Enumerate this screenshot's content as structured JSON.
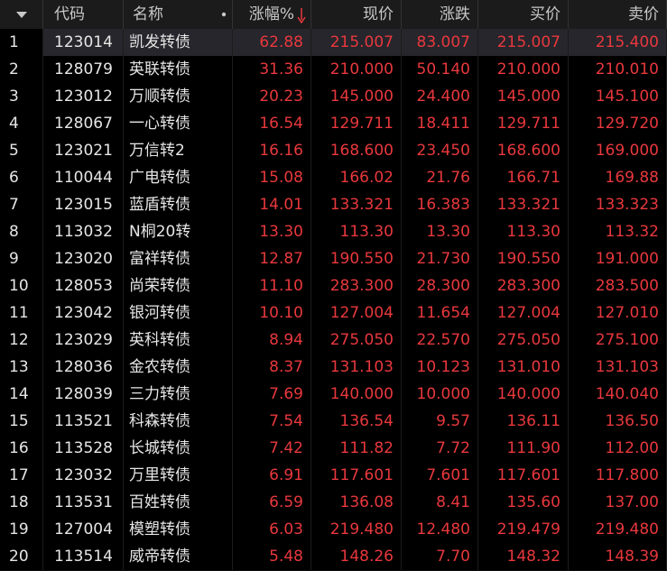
{
  "table": {
    "headers": [
      "代码",
      "名称",
      "涨幅%",
      "现价",
      "涨跌",
      "买价",
      "卖价"
    ],
    "rows": [
      [
        "1",
        "123014",
        "凯发转债",
        "62.88",
        "215.007",
        "83.007",
        "215.007",
        "215.400"
      ],
      [
        "2",
        "128079",
        "英联转债",
        "31.36",
        "210.000",
        "50.140",
        "210.000",
        "210.010"
      ],
      [
        "3",
        "123012",
        "万顺转债",
        "20.23",
        "145.000",
        "24.400",
        "145.000",
        "145.100"
      ],
      [
        "4",
        "128067",
        "一心转债",
        "16.54",
        "129.711",
        "18.411",
        "129.711",
        "129.720"
      ],
      [
        "5",
        "123021",
        "万信转2",
        "16.16",
        "168.600",
        "23.450",
        "168.600",
        "169.000"
      ],
      [
        "6",
        "110044",
        "广电转债",
        "15.08",
        "166.02",
        "21.76",
        "166.71",
        "169.88"
      ],
      [
        "7",
        "123015",
        "蓝盾转债",
        "14.01",
        "133.321",
        "16.383",
        "133.321",
        "133.323"
      ],
      [
        "8",
        "113032",
        "N桐20转",
        "13.30",
        "113.30",
        "13.30",
        "113.30",
        "113.32"
      ],
      [
        "9",
        "123020",
        "富祥转债",
        "12.87",
        "190.550",
        "21.730",
        "190.550",
        "191.000"
      ],
      [
        "10",
        "128053",
        "尚荣转债",
        "11.10",
        "283.300",
        "28.300",
        "283.300",
        "283.500"
      ],
      [
        "11",
        "123042",
        "银河转债",
        "10.10",
        "127.004",
        "11.654",
        "127.004",
        "127.010"
      ],
      [
        "12",
        "123029",
        "英科转债",
        "8.94",
        "275.050",
        "22.570",
        "275.050",
        "275.100"
      ],
      [
        "13",
        "128036",
        "金农转债",
        "8.37",
        "131.103",
        "10.123",
        "131.010",
        "131.103"
      ],
      [
        "14",
        "128039",
        "三力转债",
        "7.69",
        "140.000",
        "10.000",
        "140.000",
        "140.040"
      ],
      [
        "15",
        "113521",
        "科森转债",
        "7.54",
        "136.54",
        "9.57",
        "136.11",
        "136.50"
      ],
      [
        "16",
        "113528",
        "长城转债",
        "7.42",
        "111.82",
        "7.72",
        "111.90",
        "112.00"
      ],
      [
        "17",
        "123032",
        "万里转债",
        "6.91",
        "117.601",
        "7.601",
        "117.601",
        "117.800"
      ],
      [
        "18",
        "113531",
        "百姓转债",
        "6.59",
        "136.08",
        "8.41",
        "135.60",
        "137.00"
      ],
      [
        "19",
        "127004",
        "模塑转债",
        "6.03",
        "219.480",
        "12.480",
        "219.479",
        "219.480"
      ],
      [
        "20",
        "113514",
        "威帝转债",
        "5.48",
        "148.26",
        "7.70",
        "148.32",
        "148.39"
      ]
    ]
  }
}
